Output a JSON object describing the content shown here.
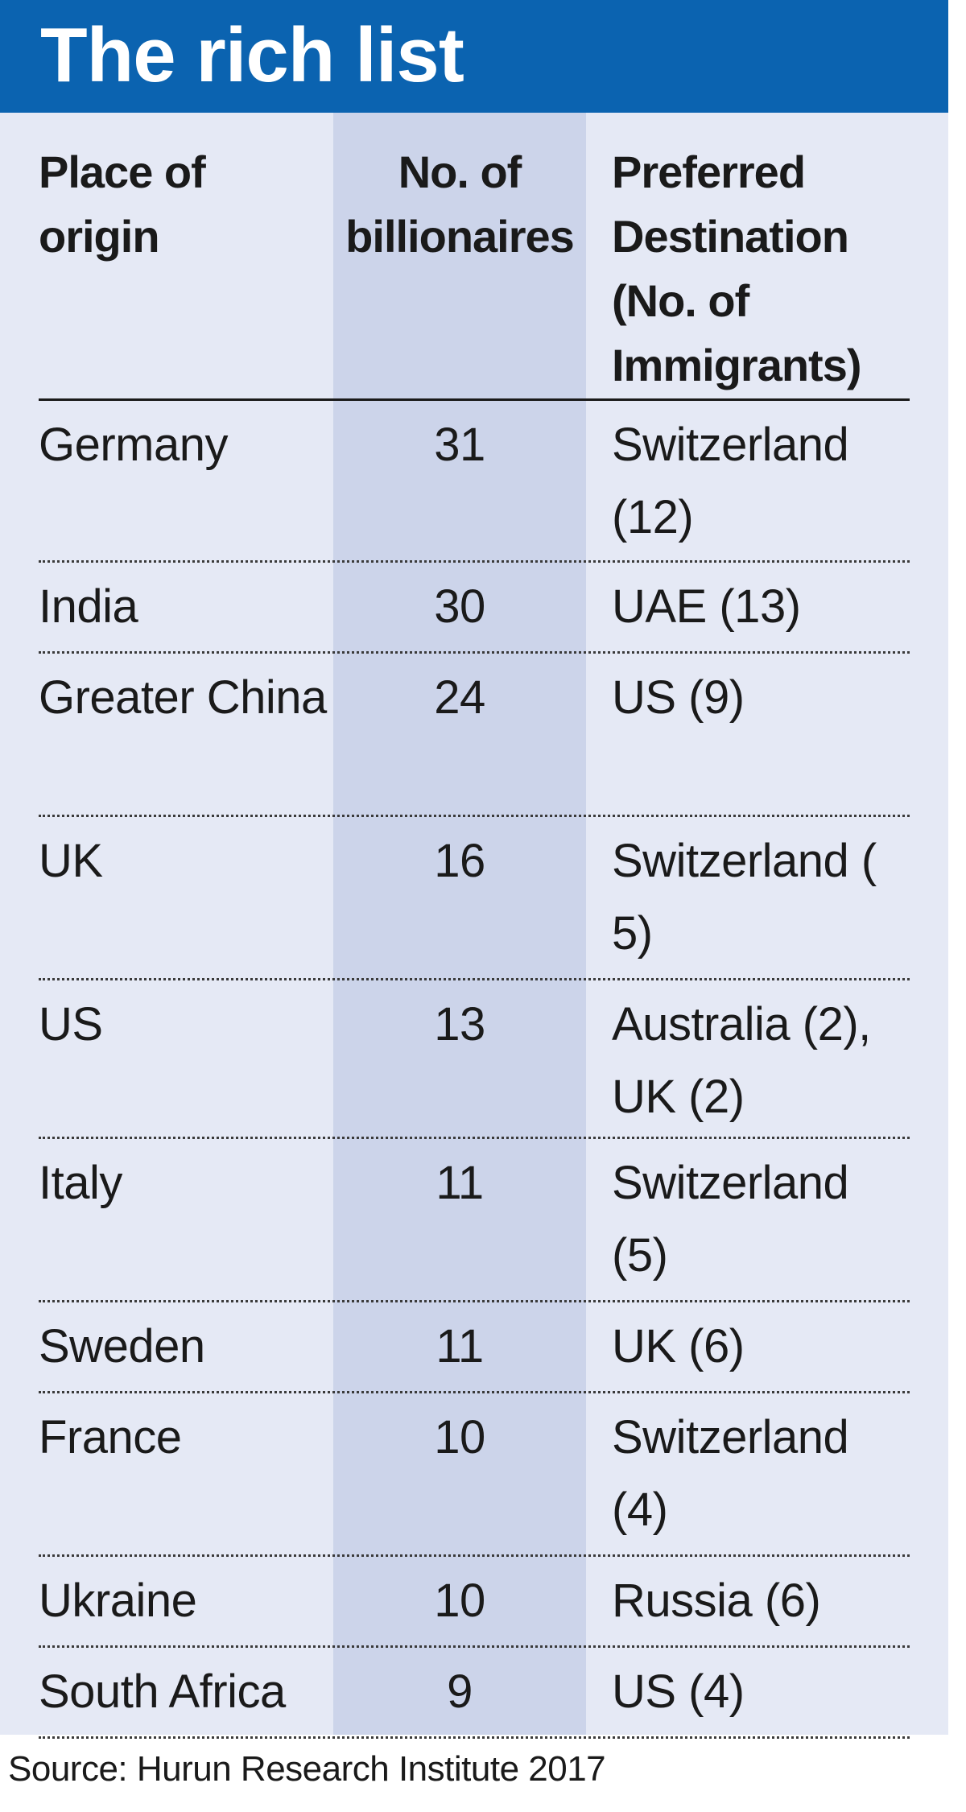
{
  "chart_data": {
    "type": "table",
    "title": "The rich list",
    "columns": [
      "Place of origin",
      "No. of billionaires",
      "Preferred Destination (No. of Immigrants)"
    ],
    "rows": [
      {
        "origin": "Germany",
        "billionaires": 31,
        "destination": "Switzerland (12)"
      },
      {
        "origin": "India",
        "billionaires": 30,
        "destination": "UAE (13)"
      },
      {
        "origin": "Greater China",
        "billionaires": 24,
        "destination": "US (9)"
      },
      {
        "origin": "UK",
        "billionaires": 16,
        "destination": "Switzerland ( 5)"
      },
      {
        "origin": "US",
        "billionaires": 13,
        "destination": "Australia (2), UK (2)"
      },
      {
        "origin": "Italy",
        "billionaires": 11,
        "destination": "Switzerland (5)"
      },
      {
        "origin": "Sweden",
        "billionaires": 11,
        "destination": "UK (6)"
      },
      {
        "origin": "France",
        "billionaires": 10,
        "destination": "Switzerland (4)"
      },
      {
        "origin": "Ukraine",
        "billionaires": 10,
        "destination": "Russia (6)"
      },
      {
        "origin": "South Africa",
        "billionaires": 9,
        "destination": "US (4)"
      }
    ],
    "source": "Source: Hurun Research Institute 2017"
  },
  "colors": {
    "header_bg": "#0b63b0",
    "panel_bg": "#e5e9f5",
    "highlight_column_bg": "#ccd4ea"
  }
}
